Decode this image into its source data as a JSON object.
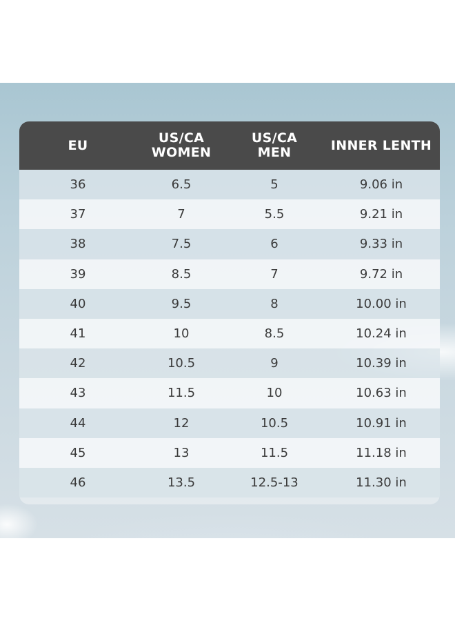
{
  "table": {
    "headers": [
      "EU",
      "US/CA\nWOMEN",
      "US/CA\nMEN",
      "INNER LENTH"
    ],
    "rows": [
      [
        "36",
        "6.5",
        "5",
        "9.06 in"
      ],
      [
        "37",
        "7",
        "5.5",
        "9.21 in"
      ],
      [
        "38",
        "7.5",
        "6",
        "9.33 in"
      ],
      [
        "39",
        "8.5",
        "7",
        "9.72 in"
      ],
      [
        "40",
        "9.5",
        "8",
        "10.00 in"
      ],
      [
        "41",
        "10",
        "8.5",
        "10.24 in"
      ],
      [
        "42",
        "10.5",
        "9",
        "10.39 in"
      ],
      [
        "43",
        "11.5",
        "10",
        "10.63 in"
      ],
      [
        "44",
        "12",
        "10.5",
        "10.91 in"
      ],
      [
        "45",
        "13",
        "11.5",
        "11.18 in"
      ],
      [
        "46",
        "13.5",
        "12.5-13",
        "11.30 in"
      ]
    ]
  },
  "colors": {
    "header_bg": "#4a4a4a",
    "header_text": "#ffffff",
    "body_text": "#3a3a3a"
  }
}
